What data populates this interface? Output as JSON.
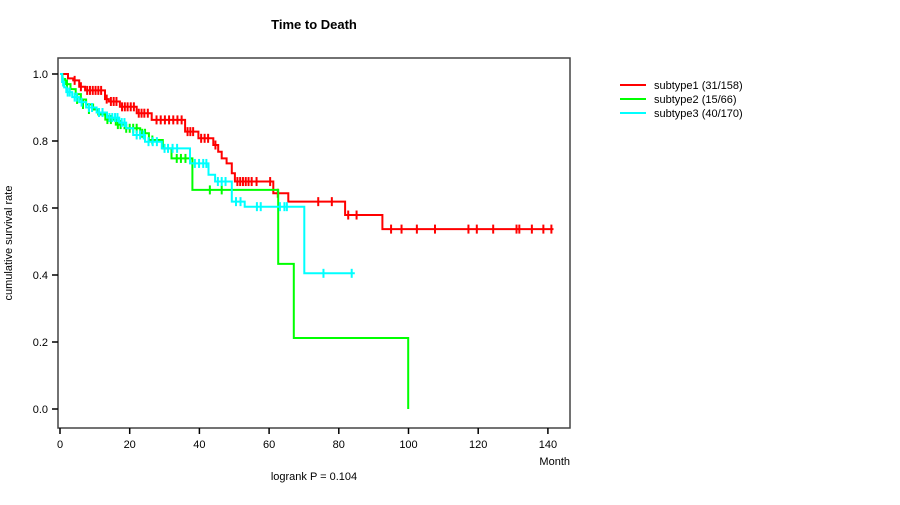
{
  "title": "Time to Death",
  "annotation": "logrank P = 0.104",
  "axes": {
    "x": {
      "label": "Month",
      "ticks": [
        0,
        20,
        40,
        60,
        80,
        100,
        120,
        140
      ]
    },
    "y": {
      "label": "cumulative survival rate",
      "ticks": [
        0.0,
        0.2,
        0.4,
        0.6,
        0.8,
        1.0
      ]
    }
  },
  "colors": {
    "subtype1": "#ff0000",
    "subtype2": "#00ff00",
    "subtype3": "#00ffff",
    "axis": "#444444",
    "text": "#000000"
  },
  "chart_data": {
    "type": "line",
    "subtype": "kaplan-meier-step",
    "title": "Time to Death",
    "xlabel": "Month",
    "ylabel": "cumulative survival rate",
    "annotation": "logrank P = 0.104",
    "xlim": [
      0,
      146
    ],
    "ylim": [
      0.0,
      1.0
    ],
    "grid": false,
    "legend_position": "right-outside",
    "series": [
      {
        "name": "subtype1 (31/158)",
        "color": "#ff0000",
        "points": [
          [
            0,
            1.0
          ],
          [
            2.3,
            0.987
          ],
          [
            3.8,
            0.981
          ],
          [
            5.5,
            0.962
          ],
          [
            7.2,
            0.951
          ],
          [
            12.9,
            0.925
          ],
          [
            14.0,
            0.918
          ],
          [
            17.2,
            0.902
          ],
          [
            22.0,
            0.883
          ],
          [
            26.3,
            0.863
          ],
          [
            35.9,
            0.828
          ],
          [
            39.7,
            0.808
          ],
          [
            44.0,
            0.788
          ],
          [
            45.4,
            0.768
          ],
          [
            46.4,
            0.748
          ],
          [
            47.8,
            0.733
          ],
          [
            49.3,
            0.704
          ],
          [
            50.2,
            0.679
          ],
          [
            61.2,
            0.644
          ],
          [
            65.5,
            0.619
          ],
          [
            81.8,
            0.579
          ],
          [
            92.5,
            0.537
          ],
          [
            141.6,
            0.537
          ]
        ],
        "censors": [
          [
            4.2,
            0.981
          ],
          [
            6.0,
            0.962
          ],
          [
            7.8,
            0.951
          ],
          [
            8.6,
            0.951
          ],
          [
            9.4,
            0.951
          ],
          [
            10.2,
            0.951
          ],
          [
            11.0,
            0.951
          ],
          [
            11.8,
            0.951
          ],
          [
            13.4,
            0.925
          ],
          [
            14.6,
            0.918
          ],
          [
            15.4,
            0.918
          ],
          [
            16.2,
            0.918
          ],
          [
            17.8,
            0.902
          ],
          [
            18.6,
            0.902
          ],
          [
            19.4,
            0.902
          ],
          [
            20.3,
            0.902
          ],
          [
            21.2,
            0.902
          ],
          [
            22.6,
            0.883
          ],
          [
            23.4,
            0.883
          ],
          [
            24.2,
            0.883
          ],
          [
            25.2,
            0.883
          ],
          [
            27.7,
            0.863
          ],
          [
            28.9,
            0.863
          ],
          [
            30.1,
            0.863
          ],
          [
            31.3,
            0.863
          ],
          [
            32.5,
            0.863
          ],
          [
            33.7,
            0.863
          ],
          [
            34.9,
            0.863
          ],
          [
            36.6,
            0.828
          ],
          [
            37.4,
            0.828
          ],
          [
            38.2,
            0.828
          ],
          [
            40.5,
            0.808
          ],
          [
            41.5,
            0.808
          ],
          [
            42.5,
            0.808
          ],
          [
            44.6,
            0.788
          ],
          [
            50.9,
            0.679
          ],
          [
            51.7,
            0.679
          ],
          [
            52.5,
            0.679
          ],
          [
            53.3,
            0.679
          ],
          [
            54.1,
            0.679
          ],
          [
            55.0,
            0.679
          ],
          [
            56.4,
            0.679
          ],
          [
            60.3,
            0.679
          ],
          [
            62.5,
            0.644
          ],
          [
            74.1,
            0.619
          ],
          [
            78.0,
            0.619
          ],
          [
            82.7,
            0.579
          ],
          [
            85.1,
            0.579
          ],
          [
            95.0,
            0.537
          ],
          [
            98.0,
            0.537
          ],
          [
            102.4,
            0.537
          ],
          [
            107.6,
            0.537
          ],
          [
            117.2,
            0.537
          ],
          [
            119.6,
            0.537
          ],
          [
            124.3,
            0.537
          ],
          [
            131.0,
            0.537
          ],
          [
            131.8,
            0.537
          ],
          [
            135.4,
            0.537
          ],
          [
            138.7,
            0.537
          ],
          [
            141.0,
            0.537
          ]
        ]
      },
      {
        "name": "subtype2 (15/66)",
        "color": "#00ff00",
        "points": [
          [
            0,
            1.0
          ],
          [
            0.7,
            0.985
          ],
          [
            1.5,
            0.97
          ],
          [
            3.0,
            0.955
          ],
          [
            4.5,
            0.94
          ],
          [
            6.0,
            0.924
          ],
          [
            7.5,
            0.909
          ],
          [
            9.5,
            0.894
          ],
          [
            11.0,
            0.879
          ],
          [
            13.0,
            0.864
          ],
          [
            16.0,
            0.849
          ],
          [
            18.5,
            0.838
          ],
          [
            23.0,
            0.823
          ],
          [
            25.5,
            0.803
          ],
          [
            29.5,
            0.778
          ],
          [
            32.0,
            0.748
          ],
          [
            38.0,
            0.654
          ],
          [
            62.6,
            0.433
          ],
          [
            67.1,
            0.212
          ],
          [
            99.9,
            0.212
          ],
          [
            99.9,
            0.0
          ]
        ],
        "censors": [
          [
            2.0,
            0.97
          ],
          [
            4.9,
            0.924
          ],
          [
            6.6,
            0.909
          ],
          [
            8.3,
            0.894
          ],
          [
            13.6,
            0.864
          ],
          [
            14.6,
            0.864
          ],
          [
            16.6,
            0.849
          ],
          [
            17.4,
            0.849
          ],
          [
            19.0,
            0.838
          ],
          [
            20.0,
            0.838
          ],
          [
            21.0,
            0.838
          ],
          [
            22.0,
            0.838
          ],
          [
            23.6,
            0.823
          ],
          [
            24.4,
            0.823
          ],
          [
            26.5,
            0.803
          ],
          [
            33.5,
            0.748
          ],
          [
            34.7,
            0.748
          ],
          [
            36.0,
            0.748
          ],
          [
            43.0,
            0.654
          ],
          [
            46.4,
            0.654
          ]
        ]
      },
      {
        "name": "subtype3 (40/170)",
        "color": "#00ffff",
        "points": [
          [
            0,
            1.0
          ],
          [
            0.6,
            0.976
          ],
          [
            1.2,
            0.96
          ],
          [
            1.8,
            0.946
          ],
          [
            3.5,
            0.931
          ],
          [
            5.5,
            0.916
          ],
          [
            7.5,
            0.9
          ],
          [
            10.5,
            0.885
          ],
          [
            13.5,
            0.87
          ],
          [
            17.0,
            0.855
          ],
          [
            19.0,
            0.838
          ],
          [
            21.0,
            0.818
          ],
          [
            24.4,
            0.798
          ],
          [
            29.2,
            0.778
          ],
          [
            37.3,
            0.733
          ],
          [
            42.6,
            0.699
          ],
          [
            44.5,
            0.679
          ],
          [
            49.3,
            0.619
          ],
          [
            53.0,
            0.604
          ],
          [
            70.1,
            0.405
          ],
          [
            84.6,
            0.405
          ]
        ],
        "censors": [
          [
            0.9,
            0.976
          ],
          [
            2.2,
            0.946
          ],
          [
            2.8,
            0.946
          ],
          [
            4.2,
            0.931
          ],
          [
            4.8,
            0.931
          ],
          [
            6.2,
            0.916
          ],
          [
            8.3,
            0.9
          ],
          [
            9.2,
            0.9
          ],
          [
            11.2,
            0.885
          ],
          [
            12.2,
            0.885
          ],
          [
            14.2,
            0.87
          ],
          [
            15.0,
            0.87
          ],
          [
            15.8,
            0.87
          ],
          [
            16.5,
            0.87
          ],
          [
            17.7,
            0.855
          ],
          [
            18.5,
            0.855
          ],
          [
            22.0,
            0.818
          ],
          [
            23.0,
            0.818
          ],
          [
            24.0,
            0.818
          ],
          [
            25.4,
            0.798
          ],
          [
            26.6,
            0.798
          ],
          [
            27.8,
            0.798
          ],
          [
            30.0,
            0.778
          ],
          [
            31.0,
            0.778
          ],
          [
            32.3,
            0.778
          ],
          [
            33.6,
            0.778
          ],
          [
            38.7,
            0.733
          ],
          [
            39.9,
            0.733
          ],
          [
            41.1,
            0.733
          ],
          [
            42.0,
            0.733
          ],
          [
            45.3,
            0.679
          ],
          [
            46.4,
            0.679
          ],
          [
            47.5,
            0.679
          ],
          [
            50.5,
            0.619
          ],
          [
            51.8,
            0.619
          ],
          [
            56.5,
            0.604
          ],
          [
            57.6,
            0.604
          ],
          [
            63.1,
            0.604
          ],
          [
            64.4,
            0.604
          ],
          [
            65.1,
            0.604
          ],
          [
            75.6,
            0.405
          ],
          [
            83.7,
            0.405
          ]
        ]
      }
    ]
  },
  "legend": {
    "items": [
      {
        "label": "subtype1 (31/158)",
        "color": "#ff0000"
      },
      {
        "label": "subtype2 (15/66)",
        "color": "#00ff00"
      },
      {
        "label": "subtype3 (40/170)",
        "color": "#00ffff"
      }
    ]
  }
}
